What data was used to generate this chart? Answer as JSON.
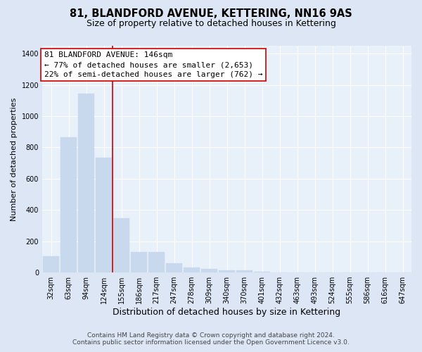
{
  "title": "81, BLANDFORD AVENUE, KETTERING, NN16 9AS",
  "subtitle": "Size of property relative to detached houses in Kettering",
  "xlabel": "Distribution of detached houses by size in Kettering",
  "ylabel": "Number of detached properties",
  "categories": [
    "32sqm",
    "63sqm",
    "94sqm",
    "124sqm",
    "155sqm",
    "186sqm",
    "217sqm",
    "247sqm",
    "278sqm",
    "309sqm",
    "340sqm",
    "370sqm",
    "401sqm",
    "432sqm",
    "463sqm",
    "493sqm",
    "524sqm",
    "555sqm",
    "586sqm",
    "616sqm",
    "647sqm"
  ],
  "values": [
    105,
    865,
    1145,
    735,
    345,
    130,
    130,
    60,
    32,
    23,
    15,
    12,
    5,
    0,
    0,
    0,
    0,
    0,
    0,
    0,
    0
  ],
  "bar_color": "#c8d9ee",
  "bar_edge_color": "#c8d9ee",
  "vline_color": "#cc0000",
  "annotation_line1": "81 BLANDFORD AVENUE: 146sqm",
  "annotation_line2": "← 77% of detached houses are smaller (2,653)",
  "annotation_line3": "22% of semi-detached houses are larger (762) →",
  "annotation_box_edge_color": "#cc0000",
  "footer_line1": "Contains HM Land Registry data © Crown copyright and database right 2024.",
  "footer_line2": "Contains public sector information licensed under the Open Government Licence v3.0.",
  "fig_background_color": "#dce6f5",
  "plot_background_color": "#e8f0fa",
  "grid_color": "#ffffff",
  "ylim": [
    0,
    1450
  ],
  "yticks": [
    0,
    200,
    400,
    600,
    800,
    1000,
    1200,
    1400
  ],
  "title_fontsize": 10.5,
  "subtitle_fontsize": 9,
  "tick_fontsize": 7,
  "ylabel_fontsize": 8,
  "xlabel_fontsize": 9,
  "annotation_fontsize": 8,
  "footer_fontsize": 6.5
}
